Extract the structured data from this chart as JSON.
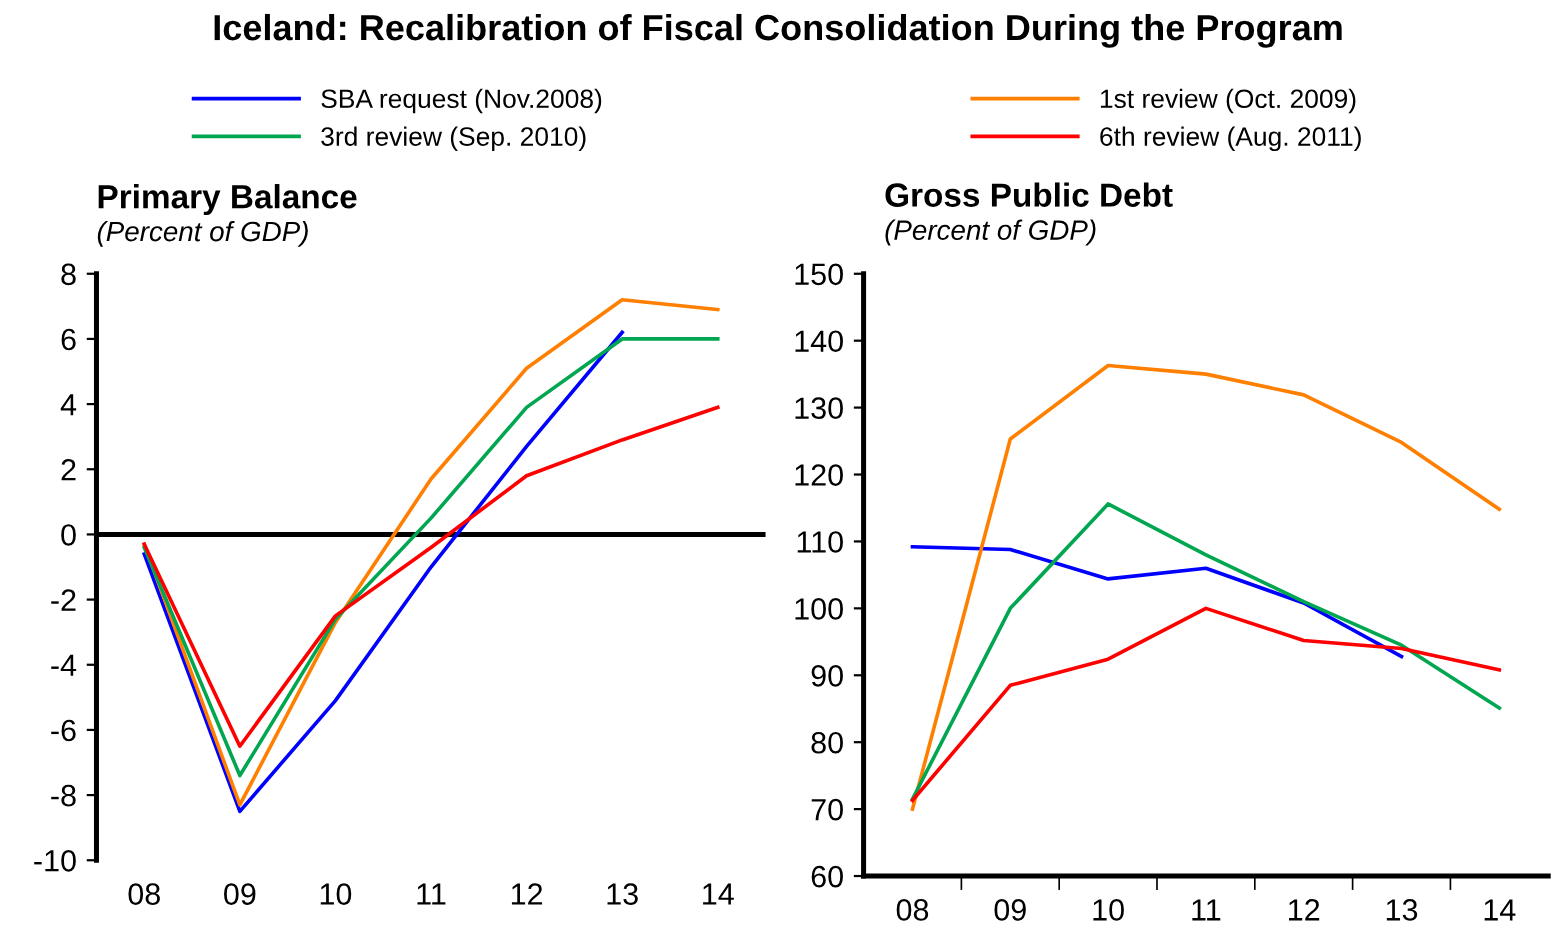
{
  "chart_data": [
    {
      "type": "line",
      "title": "Primary Balance",
      "subtitle": "(Percent of GDP)",
      "annotations": [
        "Iceland: Recalibration of Fiscal Consolidation During the Program"
      ],
      "categories": [
        "08",
        "09",
        "10",
        "11",
        "12",
        "13",
        "14"
      ],
      "series": [
        {
          "name": "SBA request (Nov.2008)",
          "color": "#0000ff",
          "values": [
            -0.6,
            -8.5,
            -5.1,
            -1.0,
            2.7,
            6.2,
            null
          ]
        },
        {
          "name": "1st review (Oct. 2009)",
          "color": "#ff7f00",
          "values": [
            -0.3,
            -8.3,
            -2.7,
            1.7,
            5.1,
            7.2,
            6.9
          ]
        },
        {
          "name": "3rd review (Sep. 2010)",
          "color": "#00a650",
          "values": [
            -0.4,
            -7.4,
            -2.6,
            0.5,
            3.9,
            6.0,
            6.0
          ]
        },
        {
          "name": "6th review (Aug. 2011)",
          "color": "#ff0000",
          "values": [
            -0.3,
            -6.5,
            -2.5,
            -0.4,
            1.8,
            2.9,
            3.9
          ]
        }
      ],
      "ylim": [
        -10,
        8
      ],
      "yticks": [
        -10,
        -8,
        -6,
        -4,
        -2,
        0,
        2,
        4,
        6,
        8
      ],
      "ref_lines": [
        {
          "axis": "y",
          "value": 0,
          "color": "#000000"
        }
      ],
      "legend": "top",
      "grid": false
    },
    {
      "type": "line",
      "title": "Gross Public Debt",
      "subtitle": "(Percent of GDP)",
      "categories": [
        "08",
        "09",
        "10",
        "11",
        "12",
        "13",
        "14"
      ],
      "series": [
        {
          "color": "#0000ff",
          "values": [
            109.2,
            108.8,
            104.4,
            106.0,
            100.8,
            92.8,
            null
          ]
        },
        {
          "color": "#ff7f00",
          "values": [
            70.0,
            125.3,
            136.3,
            135.0,
            131.9,
            124.8,
            114.8
          ]
        },
        {
          "color": "#00a650",
          "values": [
            71.5,
            100.0,
            115.6,
            108.0,
            101.0,
            94.5,
            85.1
          ]
        },
        {
          "color": "#ff0000",
          "values": [
            71.3,
            88.5,
            92.4,
            100.0,
            95.2,
            94.0,
            90.8
          ]
        }
      ],
      "ylim": [
        60,
        150
      ],
      "yticks": [
        60,
        70,
        80,
        90,
        100,
        110,
        120,
        130,
        140,
        150
      ],
      "grid": false
    }
  ]
}
